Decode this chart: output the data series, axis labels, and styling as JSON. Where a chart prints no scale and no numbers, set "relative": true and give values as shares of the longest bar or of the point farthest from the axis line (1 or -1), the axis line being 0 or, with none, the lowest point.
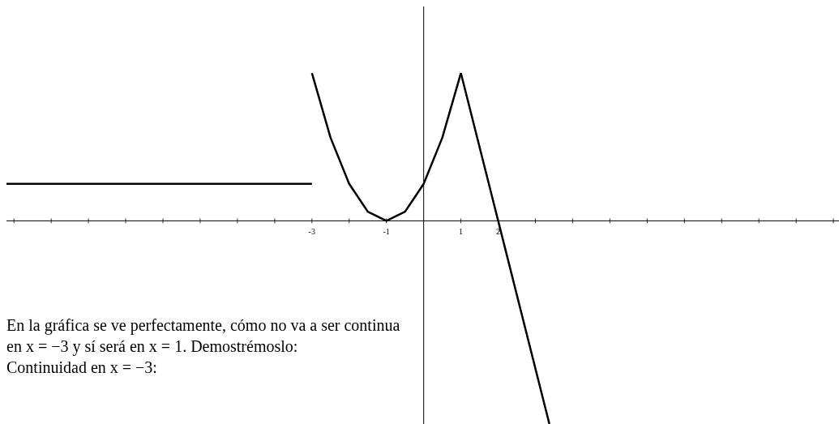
{
  "chart_data": {
    "type": "line",
    "relative": true,
    "xlim": [
      -11.2,
      11.15
    ],
    "xticks": [
      {
        "value": -11,
        "label": null
      },
      {
        "value": -10,
        "label": null
      },
      {
        "value": -9,
        "label": null
      },
      {
        "value": -8,
        "label": null
      },
      {
        "value": -7,
        "label": null
      },
      {
        "value": -6,
        "label": null
      },
      {
        "value": -5,
        "label": null
      },
      {
        "value": -4,
        "label": null
      },
      -3,
      {
        "value": -2,
        "label": null
      },
      -1,
      1,
      2,
      {
        "value": 3,
        "label": null
      },
      {
        "value": 4,
        "label": null
      },
      {
        "value": 5,
        "label": null
      },
      {
        "value": 6,
        "label": null
      },
      {
        "value": 7,
        "label": null
      },
      {
        "value": 8,
        "label": null
      },
      {
        "value": 9,
        "label": null
      },
      {
        "value": 10,
        "label": null
      },
      {
        "value": 11,
        "label": null
      }
    ],
    "tick_labels": "x",
    "grid": false,
    "legend": false,
    "marker": "none",
    "line_style": "solid",
    "series": [
      {
        "color": "#000000",
        "x": [
          -11.2,
          -3
        ],
        "values": [
          0.182,
          0.182
        ]
      },
      {
        "color": "#000000",
        "x": [
          -3,
          -2.5,
          -2,
          -1.5,
          -1,
          -0.5,
          0,
          0.5,
          1
        ],
        "values": [
          0.727,
          0.409,
          0.182,
          0.045,
          0,
          0.045,
          0.182,
          0.409,
          0.727
        ]
      },
      {
        "color": "#000000",
        "x": [
          1,
          2,
          3.375
        ],
        "values": [
          0.727,
          0,
          -1
        ]
      }
    ],
    "annotations": [
      "En la gráfica se ve perfectamente, cómo no va a ser continua en x = −3 y sí será en x = 1. Demostrémoslo:",
      "Continuidad en x = −3:"
    ]
  }
}
